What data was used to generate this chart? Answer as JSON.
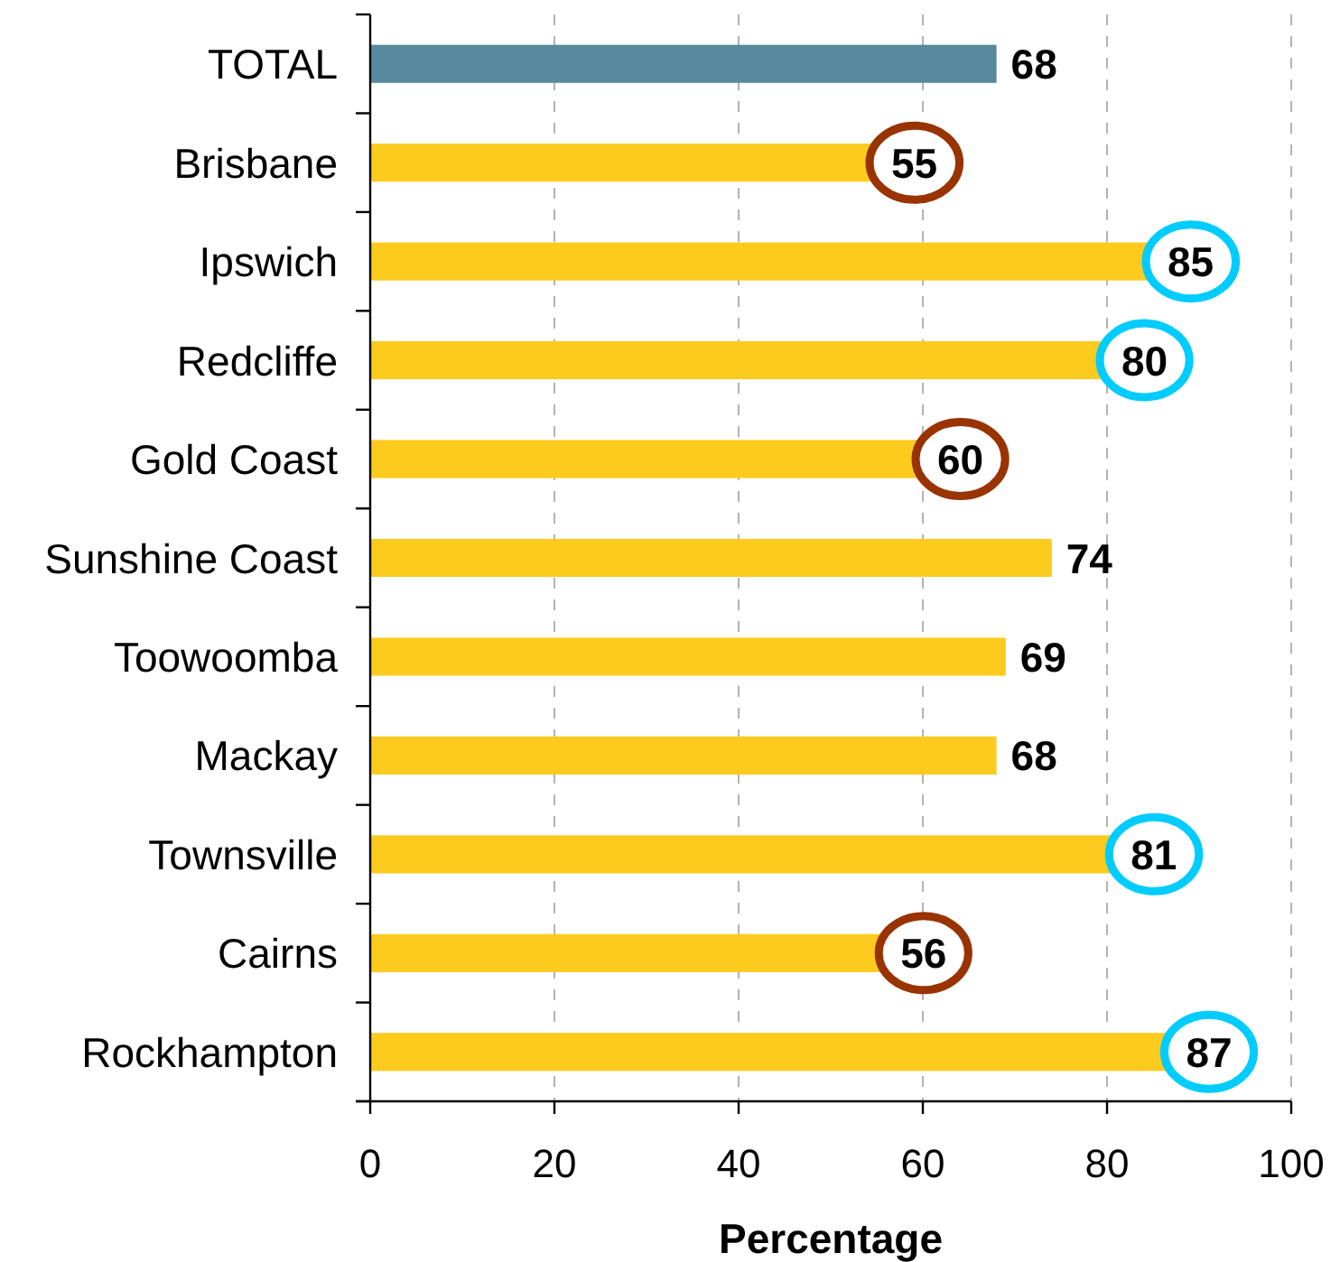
{
  "chart_data": {
    "type": "bar",
    "orientation": "horizontal",
    "categories": [
      "TOTAL",
      "Brisbane",
      "Ipswich",
      "Redcliffe",
      "Gold Coast",
      "Sunshine Coast",
      "Toowoomba",
      "Mackay",
      "Townsville",
      "Cairns",
      "Rockhampton"
    ],
    "values": [
      68,
      55,
      85,
      80,
      60,
      74,
      69,
      68,
      81,
      56,
      87
    ],
    "colors": [
      "#588a9e",
      "#fdca1e",
      "#fdca1e",
      "#fdca1e",
      "#fdca1e",
      "#fdca1e",
      "#fdca1e",
      "#fdca1e",
      "#fdca1e",
      "#fdca1e",
      "#fdca1e"
    ],
    "xlim": [
      0,
      100
    ],
    "xticks": [
      0,
      20,
      40,
      60,
      80,
      100
    ],
    "xlabel": "Percentage",
    "grid": "x",
    "data_labels": true
  }
}
